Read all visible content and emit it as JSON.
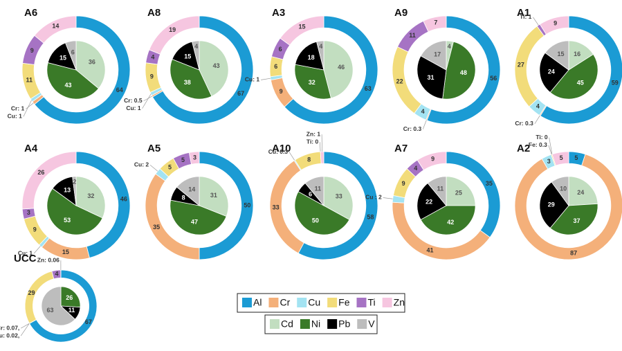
{
  "chart_data": [
    {
      "type": "donut",
      "title": "A6",
      "outer": {
        "values": [
          64,
          1,
          1,
          11,
          9,
          14
        ],
        "value_labels": [
          "64",
          "Cr: 1",
          "Cu: 1",
          "11",
          "9",
          "14"
        ]
      },
      "inner": {
        "values": [
          36,
          43,
          15,
          6
        ]
      }
    },
    {
      "type": "donut",
      "title": "A8",
      "outer": {
        "values": [
          67,
          0.5,
          1,
          9,
          4,
          19
        ],
        "value_labels": [
          "67",
          "Cr: 0.5",
          "Cu: 1",
          "9",
          "4",
          "19"
        ]
      },
      "inner": {
        "values": [
          43,
          38,
          15,
          4
        ]
      }
    },
    {
      "type": "donut",
      "title": "A3",
      "outer": {
        "values": [
          63,
          9,
          1,
          6,
          6,
          15
        ],
        "value_labels": [
          "63",
          "9",
          "Cu: 1",
          "6",
          "6",
          "15"
        ]
      },
      "inner": {
        "values": [
          46,
          32,
          18,
          4
        ]
      }
    },
    {
      "type": "donut",
      "title": "A9",
      "outer": {
        "values": [
          56,
          0.3,
          4,
          22,
          11,
          7
        ],
        "value_labels": [
          "56",
          "Cr: 0.3",
          "4",
          "22",
          "11",
          "7"
        ]
      },
      "inner": {
        "values": [
          4,
          48,
          31,
          17
        ]
      }
    },
    {
      "type": "donut",
      "title": "A1",
      "outer": {
        "values": [
          59,
          0.3,
          4,
          27,
          1,
          9
        ],
        "value_labels": [
          "59",
          "Cr: 0.3",
          "4",
          "27",
          "Ti: 1",
          "9"
        ]
      },
      "inner": {
        "values": [
          16,
          45,
          24,
          15
        ]
      }
    },
    {
      "type": "donut",
      "title": "A4",
      "outer": {
        "values": [
          46,
          15,
          1,
          9,
          3,
          26
        ],
        "value_labels": [
          "46",
          "15",
          "Cu: 1",
          "9",
          "3",
          "26"
        ]
      },
      "inner": {
        "values": [
          32,
          53,
          13,
          2
        ]
      }
    },
    {
      "type": "donut",
      "title": "A5",
      "outer": {
        "values": [
          50,
          35,
          2,
          5,
          5,
          3
        ],
        "value_labels": [
          "50",
          "35",
          "Cu: 2",
          "5",
          "5",
          "3"
        ]
      },
      "inner": {
        "values": [
          31,
          47,
          8,
          14
        ]
      }
    },
    {
      "type": "donut",
      "title": "A10",
      "outer": {
        "values": [
          58,
          33,
          0.3,
          8,
          0,
          1
        ],
        "value_labels": [
          "58",
          "33",
          "Cu: 0.3",
          "8",
          "Ti: 0",
          "Zn: 1"
        ]
      },
      "inner": {
        "values": [
          33,
          50,
          6,
          11
        ]
      }
    },
    {
      "type": "donut",
      "title": "A7",
      "outer": {
        "values": [
          35,
          41,
          2,
          9,
          4,
          9
        ],
        "value_labels": [
          "35",
          "41",
          "Cu : 2",
          "9",
          "4",
          "9"
        ]
      },
      "inner": {
        "values": [
          25,
          42,
          22,
          11
        ]
      }
    },
    {
      "type": "donut",
      "title": "A2",
      "outer": {
        "values": [
          5,
          87,
          3,
          0.3,
          0,
          5
        ],
        "value_labels": [
          "5",
          "87",
          "3",
          "Fe: 0.3",
          "Ti: 0",
          "5"
        ]
      },
      "inner": {
        "values": [
          24,
          37,
          29,
          10
        ]
      }
    },
    {
      "type": "donut",
      "title": "UCC",
      "outer": {
        "values": [
          67,
          0.07,
          0.02,
          29,
          4,
          0.06
        ],
        "value_labels": [
          "67",
          "Cr: 0.07,",
          "Cu: 0.02,",
          "29",
          "4",
          "Zn: 0.06"
        ]
      },
      "inner": {
        "values": [
          0,
          26,
          11,
          63
        ]
      }
    }
  ],
  "legend": {
    "outer": [
      {
        "name": "Al",
        "color": "#1b9bd4"
      },
      {
        "name": "Cr",
        "color": "#f4b07a"
      },
      {
        "name": "Cu",
        "color": "#a3e3f2"
      },
      {
        "name": "Fe",
        "color": "#f2dc7a"
      },
      {
        "name": "Ti",
        "color": "#a673c4"
      },
      {
        "name": "Zn",
        "color": "#f6c6e0"
      }
    ],
    "inner": [
      {
        "name": "Cd",
        "color": "#c2dec0"
      },
      {
        "name": "Ni",
        "color": "#3a7a28"
      },
      {
        "name": "Pb",
        "color": "#000000"
      },
      {
        "name": "V",
        "color": "#bdbdbd"
      }
    ]
  }
}
